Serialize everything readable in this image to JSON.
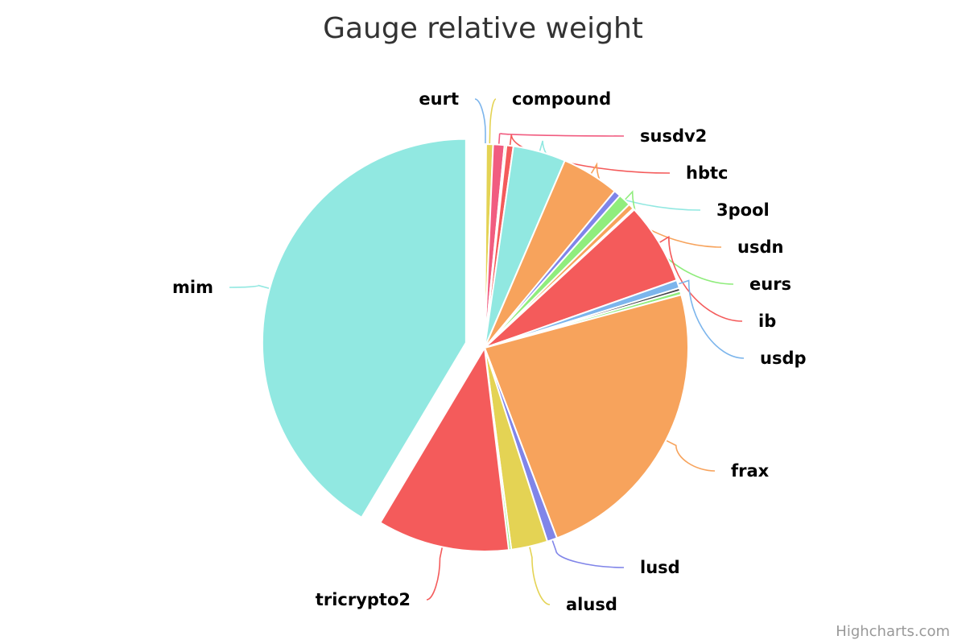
{
  "title": "Gauge relative weight",
  "credits": "Highcharts.com",
  "chart_data": {
    "type": "pie",
    "title": "Gauge relative weight",
    "start_angle_deg": 0,
    "slices": [
      {
        "name": "eurt",
        "value": 0.12,
        "color": "#7cb5ec"
      },
      {
        "name": "compound",
        "value": 0.55,
        "color": "#e4d354"
      },
      {
        "name": "susdv2",
        "value": 0.9,
        "color": "#f15c80"
      },
      {
        "name": "",
        "value": 0.15,
        "color": "#e4d354"
      },
      {
        "name": "hbtc",
        "value": 0.55,
        "color": "#f45b5b"
      },
      {
        "name": "3pool",
        "value": 4.2,
        "color": "#91e8e1"
      },
      {
        "name": "usdn",
        "value": 4.6,
        "color": "#f7a35c"
      },
      {
        "name": "",
        "value": 0.55,
        "color": "#8085e9"
      },
      {
        "name": "eurs",
        "value": 1.0,
        "color": "#90ed7d"
      },
      {
        "name": "",
        "value": 0.45,
        "color": "#f7a35c"
      },
      {
        "name": "",
        "value": 0.12,
        "color": "#f15c80"
      },
      {
        "name": "ib",
        "value": 6.5,
        "color": "#f45b5b"
      },
      {
        "name": "usdp",
        "value": 0.65,
        "color": "#7cb5ec"
      },
      {
        "name": "",
        "value": 0.25,
        "color": "#434348"
      },
      {
        "name": "",
        "value": 0.3,
        "color": "#90ed7d"
      },
      {
        "name": "frax",
        "value": 23.5,
        "color": "#f7a35c"
      },
      {
        "name": "lusd",
        "value": 0.8,
        "color": "#8085e9"
      },
      {
        "name": "alusd",
        "value": 2.9,
        "color": "#e4d354"
      },
      {
        "name": "",
        "value": 0.2,
        "color": "#90ed7d"
      },
      {
        "name": "tricrypto2",
        "value": 10.5,
        "color": "#f45b5b"
      },
      {
        "name": "mim",
        "value": 41.6,
        "color": "#91e8e1",
        "sliced": true
      }
    ]
  }
}
